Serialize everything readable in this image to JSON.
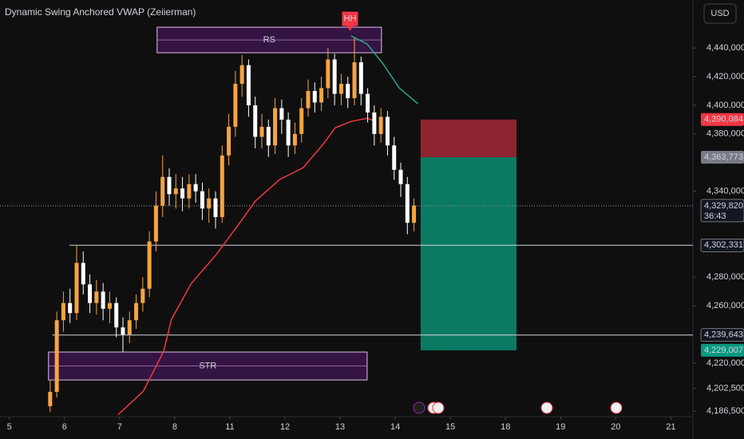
{
  "chart_data": {
    "type": "candlestick",
    "title": "Dynamic Swing Anchored VWAP (Zeiierman)",
    "currency": "USD",
    "up_color": "#f7a440",
    "down_color": "#ffffff",
    "grid": false,
    "xlim": [
      -0.17,
      12.4
    ],
    "ylim": [
      4182700,
      4473500
    ],
    "xticks": [
      {
        "value": 0,
        "label": "5"
      },
      {
        "value": 1,
        "label": "6"
      },
      {
        "value": 2,
        "label": "7"
      },
      {
        "value": 3,
        "label": "8"
      },
      {
        "value": 4,
        "label": "11"
      },
      {
        "value": 5,
        "label": "12"
      },
      {
        "value": 6,
        "label": "13"
      },
      {
        "value": 7,
        "label": "14"
      },
      {
        "value": 8,
        "label": "15"
      },
      {
        "value": 9,
        "label": "18"
      },
      {
        "value": 10,
        "label": "19"
      },
      {
        "value": 11,
        "label": "20"
      },
      {
        "value": 12,
        "label": "21"
      }
    ],
    "yticks": [
      {
        "value": 4186500,
        "label": "4,186,500"
      },
      {
        "value": 4202500,
        "label": "4,202,500"
      },
      {
        "value": 4220000,
        "label": "4,220,000"
      },
      {
        "value": 4260000,
        "label": "4,260,000"
      },
      {
        "value": 4280000,
        "label": "4,280,000"
      },
      {
        "value": 4340000,
        "label": "4,340,000"
      },
      {
        "value": 4380000,
        "label": "4,380,000"
      },
      {
        "value": 4400000,
        "label": "4,400,000"
      },
      {
        "value": 4420000,
        "label": "4,420,000"
      },
      {
        "value": 4440000,
        "label": "4,440,000"
      }
    ],
    "x": [
      0.74,
      0.86,
      0.98,
      1.1,
      1.22,
      1.34,
      1.46,
      1.58,
      1.7,
      1.82,
      1.94,
      2.06,
      2.18,
      2.3,
      2.42,
      2.54,
      2.66,
      2.78,
      2.9,
      3.02,
      3.14,
      3.26,
      3.38,
      3.5,
      3.62,
      3.74,
      3.86,
      3.98,
      4.1,
      4.22,
      4.34,
      4.46,
      4.58,
      4.7,
      4.82,
      4.94,
      5.06,
      5.18,
      5.3,
      5.42,
      5.54,
      5.66,
      5.78,
      5.9,
      6.02,
      6.14,
      6.26,
      6.38,
      6.5,
      6.62,
      6.74,
      6.86,
      6.98,
      7.1,
      7.22,
      7.34
    ],
    "open": [
      4190000,
      4200000,
      4250000,
      4262000,
      4255000,
      4290000,
      4275000,
      4262000,
      4270000,
      4258000,
      4262000,
      4245000,
      4240000,
      4250000,
      4262000,
      4272000,
      4305000,
      4330000,
      4350000,
      4338000,
      4342000,
      4335000,
      4345000,
      4340000,
      4328000,
      4335000,
      4322000,
      4365000,
      4385000,
      4415000,
      4428000,
      4400000,
      4378000,
      4385000,
      4372000,
      4398000,
      4390000,
      4372000,
      4380000,
      4398000,
      4410000,
      4402000,
      4412000,
      4432000,
      4408000,
      4415000,
      4405000,
      4430000,
      4408000,
      4395000,
      4380000,
      4392000,
      4372000,
      4355000,
      4345000,
      4318000
    ],
    "high": [
      4208000,
      4256000,
      4270000,
      4272000,
      4302000,
      4298000,
      4282000,
      4278000,
      4276000,
      4270000,
      4266000,
      4252000,
      4256000,
      4268000,
      4280000,
      4312000,
      4340000,
      4365000,
      4356000,
      4352000,
      4350000,
      4352000,
      4352000,
      4346000,
      4342000,
      4340000,
      4372000,
      4394000,
      4424000,
      4435000,
      4432000,
      4406000,
      4394000,
      4390000,
      4405000,
      4404000,
      4395000,
      4388000,
      4405000,
      4418000,
      4416000,
      4420000,
      4440000,
      4436000,
      4422000,
      4420000,
      4447000,
      4434000,
      4412000,
      4400000,
      4398000,
      4396000,
      4378000,
      4360000,
      4350000,
      4335000
    ],
    "low": [
      4186000,
      4196000,
      4242000,
      4248000,
      4250000,
      4268000,
      4255000,
      4254000,
      4250000,
      4248000,
      4238000,
      4228000,
      4234000,
      4244000,
      4256000,
      4266000,
      4298000,
      4322000,
      4330000,
      4328000,
      4326000,
      4328000,
      4332000,
      4320000,
      4318000,
      4314000,
      4318000,
      4358000,
      4378000,
      4406000,
      4392000,
      4370000,
      4370000,
      4364000,
      4366000,
      4380000,
      4364000,
      4366000,
      4374000,
      4392000,
      4395000,
      4396000,
      4405000,
      4400000,
      4400000,
      4398000,
      4400000,
      4400000,
      4388000,
      4372000,
      4374000,
      4365000,
      4348000,
      4336000,
      4310000,
      4312000
    ],
    "close": [
      4200000,
      4250000,
      4262000,
      4255000,
      4290000,
      4275000,
      4262000,
      4270000,
      4258000,
      4262000,
      4245000,
      4240000,
      4250000,
      4262000,
      4272000,
      4305000,
      4330000,
      4350000,
      4338000,
      4342000,
      4335000,
      4345000,
      4340000,
      4328000,
      4335000,
      4322000,
      4365000,
      4385000,
      4415000,
      4428000,
      4400000,
      4378000,
      4385000,
      4372000,
      4398000,
      4390000,
      4372000,
      4380000,
      4398000,
      4410000,
      4402000,
      4412000,
      4432000,
      4408000,
      4415000,
      4405000,
      4430000,
      4408000,
      4395000,
      4380000,
      4392000,
      4372000,
      4355000,
      4345000,
      4318000,
      4330000
    ],
    "series": [
      {
        "color": "#f23645",
        "x": [
          1.97,
          2.43,
          2.8,
          2.94,
          3.3,
          3.74,
          4.17,
          4.46,
          4.9,
          5.33,
          5.7,
          5.91,
          6.2,
          6.49,
          6.64
        ],
        "values": [
          4184000,
          4200500,
          4228400,
          4250600,
          4275700,
          4295200,
          4317500,
          4333100,
          4348100,
          4356500,
          4373200,
          4384300,
          4388800,
          4391000,
          4388800
        ]
      },
      {
        "color": "#22ab94",
        "x": [
          6.2,
          6.49,
          6.78,
          7.07,
          7.41
        ],
        "values": [
          4448400,
          4442800,
          4428900,
          4412200,
          4401100
        ]
      }
    ],
    "zones": [
      {
        "label": "RS",
        "x": [
          2.68,
          6.75
        ],
        "y": [
          4436700,
          4454500
        ]
      },
      {
        "label": "STR",
        "x": [
          0.71,
          6.49
        ],
        "y": [
          4208300,
          4227800
        ]
      }
    ],
    "annotations": [
      {
        "text": "HH",
        "x": 6.18,
        "y": 4452000
      }
    ],
    "position": {
      "x": [
        7.46,
        9.2
      ],
      "stop": 4390084,
      "entry": 4363773,
      "target": 4229007
    },
    "price_levels": [
      {
        "value": 4390084,
        "label": "4,390,084",
        "color": "#f23645"
      },
      {
        "value": 4363773,
        "label": "4,363,773",
        "color": "#787b86"
      },
      {
        "value": 4329820,
        "label": "4,329,820",
        "countdown": "36:43",
        "color": "#131722",
        "line_from": -0.17
      },
      {
        "value": 4302331,
        "label": "4,302,331",
        "color": "#131722",
        "line_from": 1.09
      },
      {
        "value": 4239643,
        "label": "4,239,643",
        "color": "#131722",
        "line_from": 0.78
      },
      {
        "value": 4229007,
        "label": "4,229,007",
        "color": "#089981"
      }
    ]
  }
}
